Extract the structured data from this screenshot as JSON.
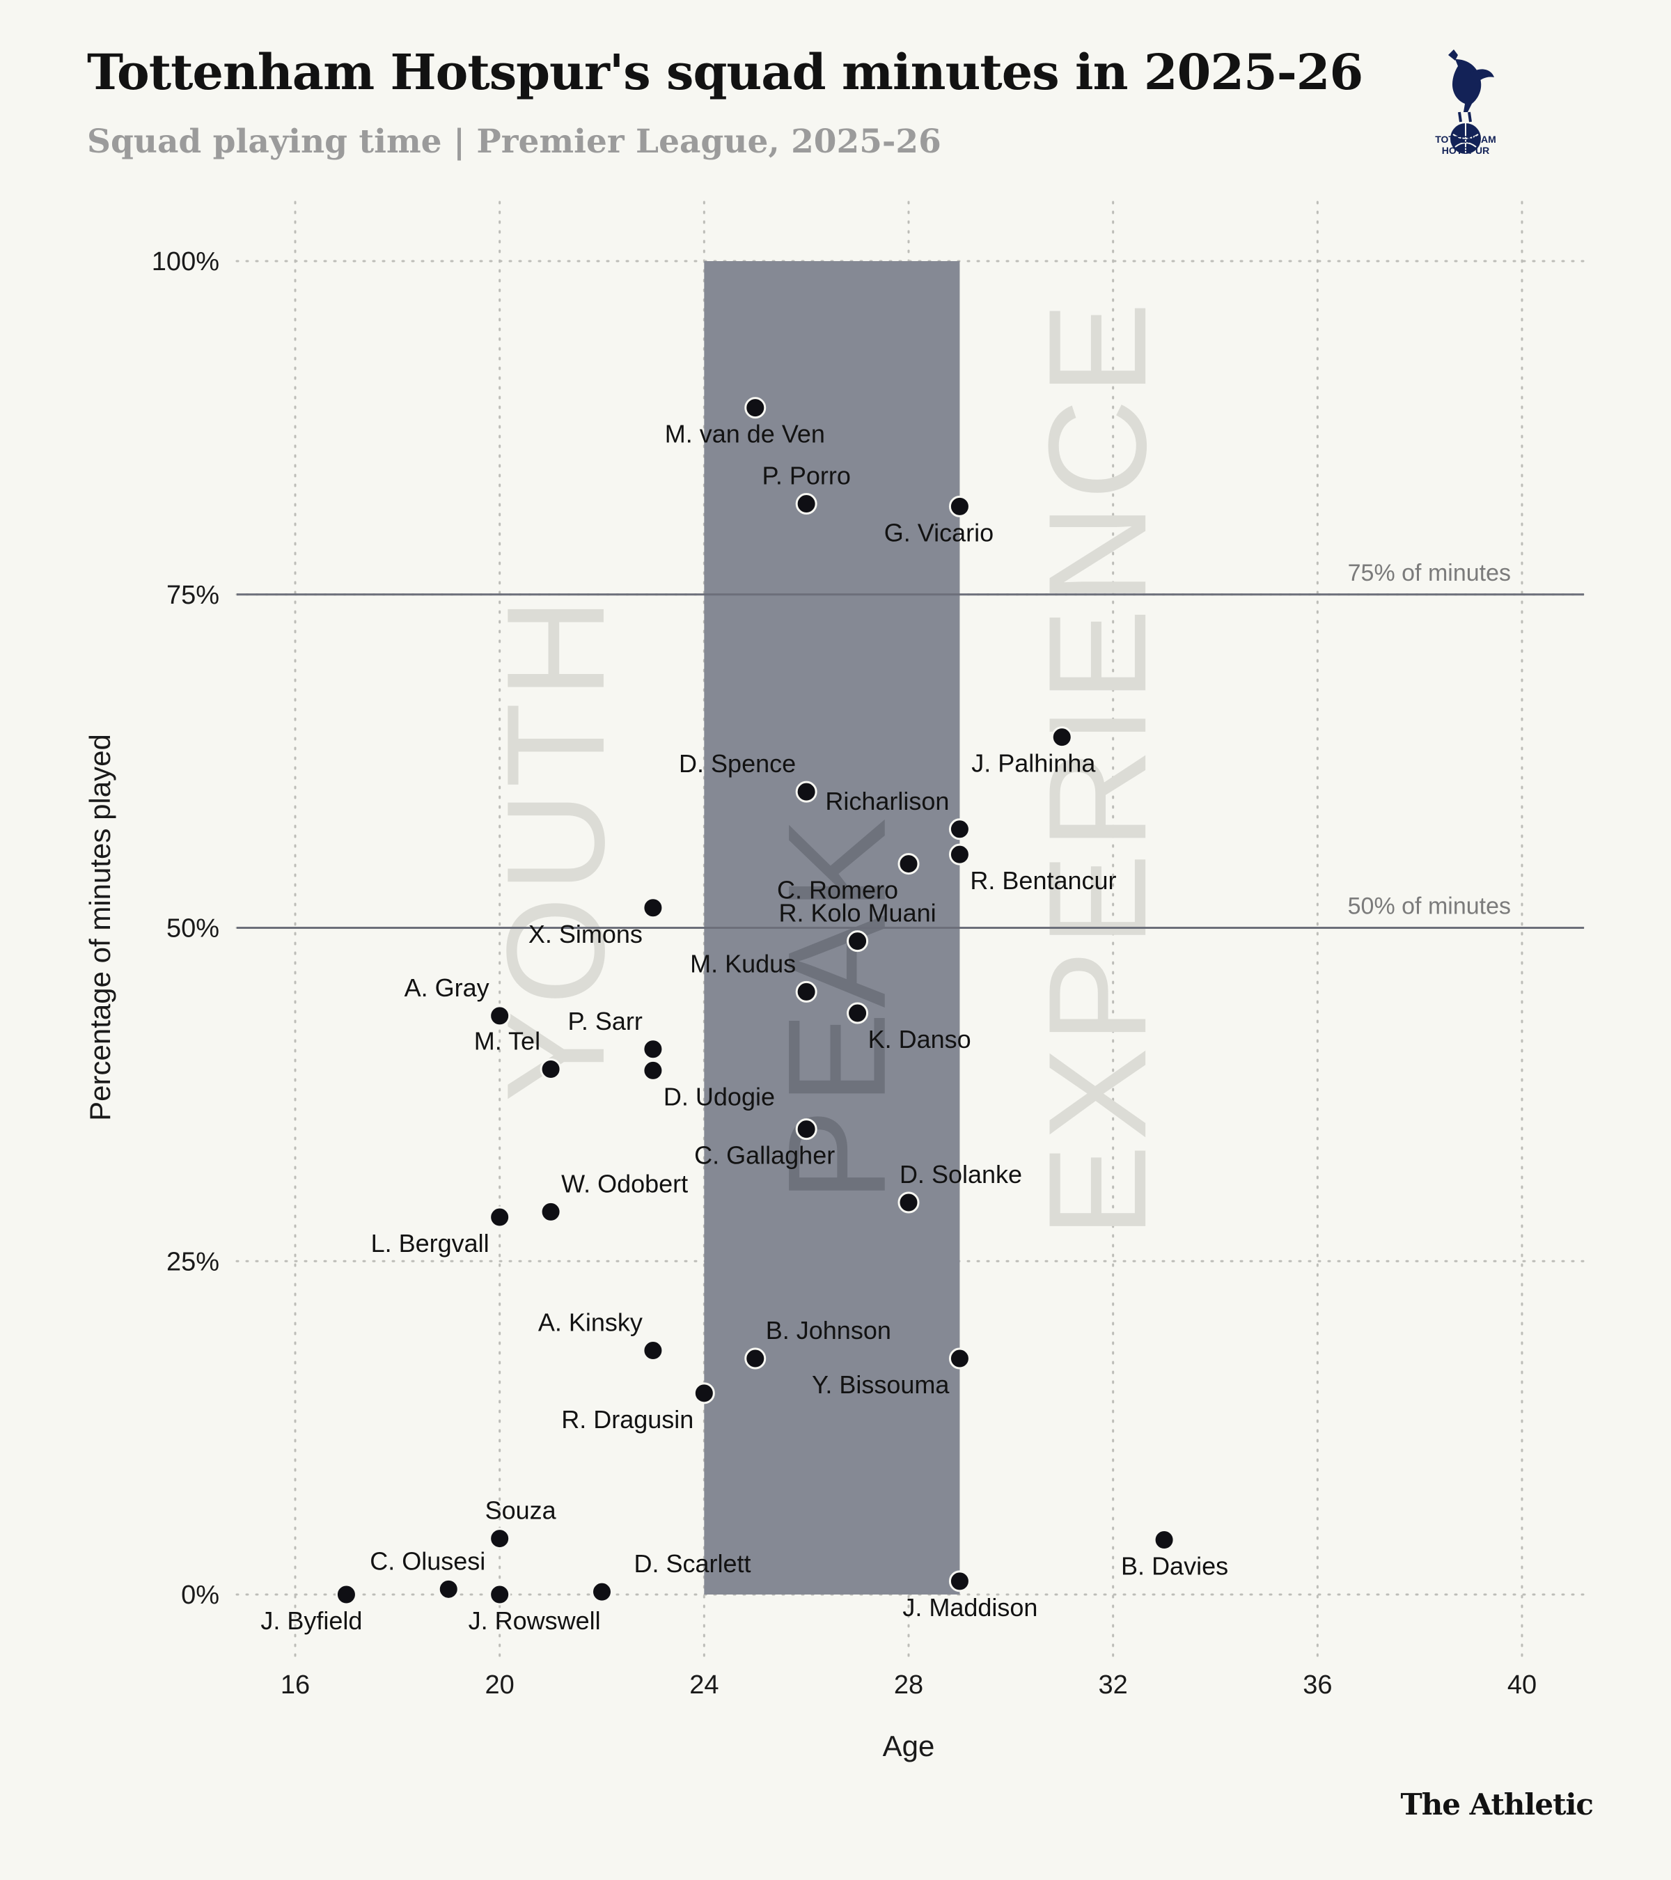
{
  "header": {
    "title": "Tottenham Hotspur's squad minutes in 2025-26",
    "subtitle": "Squad playing time | Premier League, 2025-26"
  },
  "logo": {
    "line1": "TOTTENHAM",
    "line2": "HOTSPUR",
    "icon": "cockerel-icon",
    "color": "#132257"
  },
  "footer": {
    "brand": "The Athletic"
  },
  "colors": {
    "background": "#f7f7f2",
    "peak_band": "#858994",
    "point": "#0f0f14",
    "zone_text": "#dcdcd6"
  },
  "chart_data": {
    "type": "scatter",
    "xlabel": "Age",
    "ylabel": "Percentage of minutes played",
    "xlim": [
      15,
      41.3
    ],
    "ylim": [
      -0.05,
      1.0
    ],
    "xticks": [
      16,
      20,
      24,
      28,
      32,
      36,
      40
    ],
    "yticks": [
      {
        "value": 0,
        "label": "0%"
      },
      {
        "value": 0.25,
        "label": "25%"
      },
      {
        "value": 0.5,
        "label": "50%"
      },
      {
        "value": 0.75,
        "label": "75%"
      },
      {
        "value": 1.0,
        "label": "100%"
      }
    ],
    "grid": true,
    "peak_band": {
      "x_start": 24,
      "x_end": 29,
      "y_start": 0,
      "y_end": 1.0
    },
    "zones": [
      {
        "label": "YOUTH",
        "x": 21.1,
        "y": 0.56
      },
      {
        "label": "PEAK",
        "x": 26.6,
        "y": 0.44
      },
      {
        "label": "EXPERIENCE",
        "x": 31.7,
        "y": 0.62
      }
    ],
    "reference_lines": [
      {
        "y": 0.75,
        "label": "75% of minutes"
      },
      {
        "y": 0.5,
        "label": "50% of minutes"
      }
    ],
    "points": [
      {
        "name": "M. van de Ven",
        "age": 25,
        "minutes_pct": 0.89,
        "label_pos": "below"
      },
      {
        "name": "P. Porro",
        "age": 26,
        "minutes_pct": 0.818,
        "label_pos": "above"
      },
      {
        "name": "G. Vicario",
        "age": 29,
        "minutes_pct": 0.816,
        "label_pos": "below-left"
      },
      {
        "name": "J. Palhinha",
        "age": 31,
        "minutes_pct": 0.643,
        "label_pos": "below"
      },
      {
        "name": "D. Spence",
        "age": 26,
        "minutes_pct": 0.602,
        "label_pos": "above-left"
      },
      {
        "name": "Richarlison",
        "age": 29,
        "minutes_pct": 0.574,
        "label_pos": "above-left"
      },
      {
        "name": "R. Bentancur",
        "age": 29,
        "minutes_pct": 0.555,
        "label_pos": "below-right"
      },
      {
        "name": "C. Romero",
        "age": 28,
        "minutes_pct": 0.548,
        "label_pos": "below-left"
      },
      {
        "name": "X. Simons",
        "age": 23,
        "minutes_pct": 0.515,
        "label_pos": "below-left"
      },
      {
        "name": "R. Kolo Muani",
        "age": 27,
        "minutes_pct": 0.49,
        "label_pos": "above"
      },
      {
        "name": "M. Kudus",
        "age": 26,
        "minutes_pct": 0.452,
        "label_pos": "above-left"
      },
      {
        "name": "K. Danso",
        "age": 27,
        "minutes_pct": 0.436,
        "label_pos": "below-right"
      },
      {
        "name": "A. Gray",
        "age": 20,
        "minutes_pct": 0.434,
        "label_pos": "above-left"
      },
      {
        "name": "P. Sarr",
        "age": 23,
        "minutes_pct": 0.409,
        "label_pos": "above-left"
      },
      {
        "name": "M. Tel",
        "age": 21,
        "minutes_pct": 0.394,
        "label_pos": "above-left"
      },
      {
        "name": "D. Udogie",
        "age": 23,
        "minutes_pct": 0.393,
        "label_pos": "below-right"
      },
      {
        "name": "C. Gallagher",
        "age": 26,
        "minutes_pct": 0.349,
        "label_pos": "below-left"
      },
      {
        "name": "D. Solanke",
        "age": 28,
        "minutes_pct": 0.294,
        "label_pos": "above-right"
      },
      {
        "name": "W. Odobert",
        "age": 21,
        "minutes_pct": 0.287,
        "label_pos": "above-right"
      },
      {
        "name": "L. Bergvall",
        "age": 20,
        "minutes_pct": 0.283,
        "label_pos": "below-left"
      },
      {
        "name": "A. Kinsky",
        "age": 23,
        "minutes_pct": 0.183,
        "label_pos": "above-left"
      },
      {
        "name": "B. Johnson",
        "age": 25,
        "minutes_pct": 0.177,
        "label_pos": "above-right"
      },
      {
        "name": "Y. Bissouma",
        "age": 29,
        "minutes_pct": 0.177,
        "label_pos": "below-left"
      },
      {
        "name": "R. Dragusin",
        "age": 24,
        "minutes_pct": 0.151,
        "label_pos": "below-left"
      },
      {
        "name": "Souza",
        "age": 20,
        "minutes_pct": 0.042,
        "label_pos": "above-right"
      },
      {
        "name": "B. Davies",
        "age": 33,
        "minutes_pct": 0.041,
        "label_pos": "below-right"
      },
      {
        "name": "C. Olusesi",
        "age": 19,
        "minutes_pct": 0.004,
        "label_pos": "above-left"
      },
      {
        "name": "D. Scarlett",
        "age": 22,
        "minutes_pct": 0.002,
        "label_pos": "above-right"
      },
      {
        "name": "J. Maddison",
        "age": 29,
        "minutes_pct": 0.01,
        "label_pos": "below-left"
      },
      {
        "name": "J. Byfield",
        "age": 17,
        "minutes_pct": 0.0,
        "label_pos": "below-left"
      },
      {
        "name": "J. Rowswell",
        "age": 20,
        "minutes_pct": 0.0,
        "label_pos": "below-right"
      }
    ]
  }
}
